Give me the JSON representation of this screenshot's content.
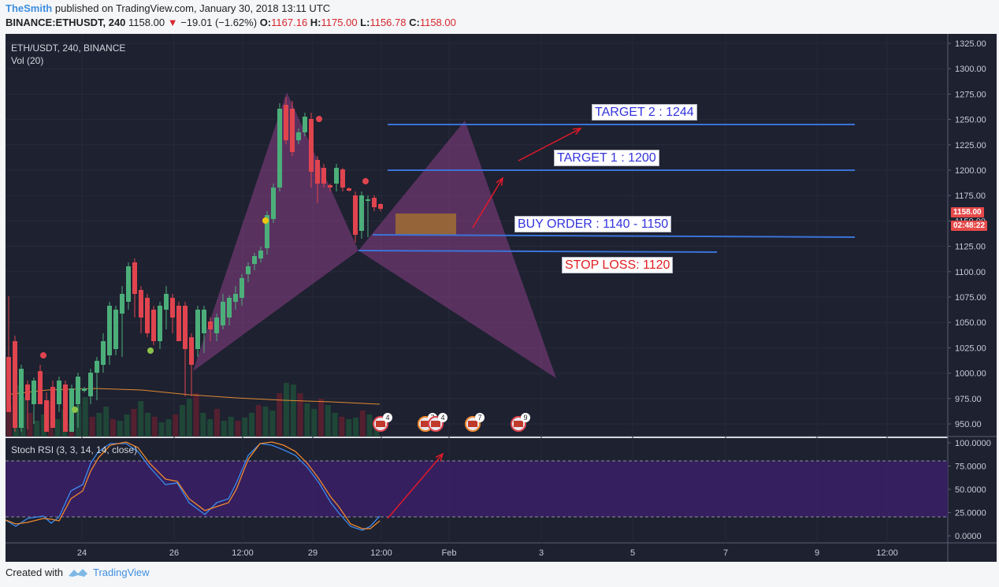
{
  "header": {
    "user": "TheSmith",
    "published": "published on TradingView.com, January 30, 2018 13:11 UTC",
    "symbol": "BINANCE:ETHUSDT, 240",
    "last": "1158.00",
    "change": "−19.01 (−1.62%)",
    "o_label": "O:",
    "o_val": "1167.16",
    "h_label": "H:",
    "h_val": "1175.00",
    "l_label": "L:",
    "l_val": "1156.78",
    "c_label": "C:",
    "c_val": "1158.00"
  },
  "pane": {
    "title": "ETH/USDT, 240, BINANCE",
    "vol": "Vol (20)",
    "rsi_title": "Stoch RSI (3, 3, 14, 14, close)"
  },
  "price_axis": [
    "1325.00",
    "1300.00",
    "1275.00",
    "1250.00",
    "1225.00",
    "1200.00",
    "1175.00",
    "1150.00",
    "1125.00",
    "1100.00",
    "1075.00",
    "1050.00",
    "1025.00",
    "1000.00",
    "975.00",
    "950.00"
  ],
  "price_badge": {
    "price": "1158.00",
    "countdown": "02:48:22"
  },
  "rsi_axis": [
    "100.0000",
    "75.0000",
    "50.0000",
    "25.0000",
    "0.0000"
  ],
  "time_axis": [
    "24",
    "26",
    "12:00",
    "29",
    "12:00",
    "Feb",
    "3",
    "5",
    "7",
    "9",
    "12:00"
  ],
  "annotations": {
    "target2": "TARGET 2 : 1244",
    "target1": "TARGET 1 : 1200",
    "buy": "BUY ORDER : 1140 - 1150",
    "stop": "STOP LOSS: 1120"
  },
  "events": [
    "4",
    "7",
    "4",
    "7",
    "9"
  ],
  "footer": {
    "created": "Created with",
    "brand": "TradingView"
  },
  "colors": {
    "bg": "#1e2130",
    "up": "#4caf7a",
    "down": "#e0444e",
    "pattern": "#8a3f86",
    "line": "#3b73d8"
  }
}
